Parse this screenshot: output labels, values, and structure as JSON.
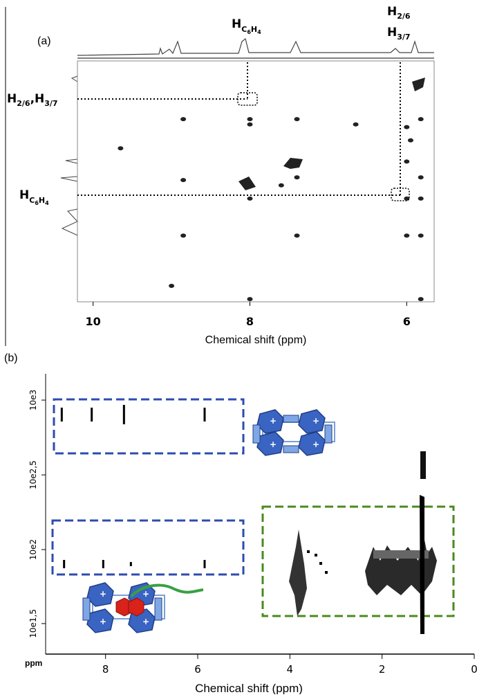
{
  "panel_a": {
    "label": "(a)",
    "top_label_1": "H",
    "top_label_1_sub": "C",
    "top_label_1_sub6": "6",
    "top_label_1_subH": "H",
    "top_label_1_sub4": "4",
    "top_label_2_line1": "H",
    "top_label_2_line1_sub": "2/6",
    "top_label_2_line2": "H",
    "top_label_2_line2_sub": "3/7",
    "left_label_1": "H",
    "left_label_1_sub": "2/6",
    "left_label_1_mid": ",H",
    "left_label_1_sub2": "3/7",
    "left_label_2": "H",
    "left_label_2_sub": "C",
    "left_label_2_sub6": "6",
    "left_label_2_subH": "H",
    "left_label_2_sub4": "4",
    "x_label": "Chemical shift (ppm)"
  },
  "panel_b": {
    "label": "(b)",
    "x_label": "Chemical shift (ppm)",
    "ppm_label": "ppm"
  },
  "chart_data": [
    {
      "type": "scatter",
      "title": "",
      "xlabel": "Chemical shift (ppm)",
      "ylabel": "",
      "x_ticks": [
        "10",
        "8",
        "6"
      ],
      "x_tick_values": [
        10,
        8,
        6
      ],
      "xlim": [
        10.2,
        5.65
      ],
      "ylim": [
        10.2,
        5.65
      ],
      "series": [
        {
          "points": [
            {
              "x": 8.85,
              "y": 9.1
            },
            {
              "x": 8.0,
              "y": 9.1
            },
            {
              "x": 7.4,
              "y": 9.1
            },
            {
              "x": 6.65,
              "y": 9.0
            },
            {
              "x": 6.0,
              "y": 8.95
            },
            {
              "x": 5.82,
              "y": 9.1
            },
            {
              "x": 5.95,
              "y": 8.7
            },
            {
              "x": 8.0,
              "y": 9.0
            },
            {
              "x": 7.4,
              "y": 8.0
            },
            {
              "x": 7.6,
              "y": 7.85
            },
            {
              "x": 8.0,
              "y": 7.6
            },
            {
              "x": 6.0,
              "y": 7.6
            },
            {
              "x": 5.82,
              "y": 7.6
            },
            {
              "x": 6.0,
              "y": 8.3
            },
            {
              "x": 5.82,
              "y": 8.0
            },
            {
              "x": 8.85,
              "y": 6.9
            },
            {
              "x": 7.4,
              "y": 6.9
            },
            {
              "x": 6.0,
              "y": 6.9
            },
            {
              "x": 5.82,
              "y": 6.9
            },
            {
              "x": 5.82,
              "y": 5.7
            },
            {
              "x": 8.0,
              "y": 5.7
            },
            {
              "x": 8.85,
              "y": 7.95
            },
            {
              "x": 9.65,
              "y": 8.55
            },
            {
              "x": 9.0,
              "y": 5.95
            }
          ]
        }
      ],
      "annotations": [
        "H2/6, H3/7",
        "HC6H4"
      ],
      "grid": false,
      "legend": "none"
    },
    {
      "type": "scatter",
      "title": "",
      "xlabel": "Chemical shift (ppm)",
      "ylabel": "",
      "x_ticks": [
        "8",
        "6",
        "4",
        "2",
        "0"
      ],
      "x_tick_values": [
        8,
        6,
        4,
        2,
        0
      ],
      "y_ticks": [
        "10e3",
        "10e2,5",
        "10e2",
        "10e1,5"
      ],
      "y_tick_values": [
        1000,
        316,
        100,
        32
      ],
      "xlim": [
        9.3,
        0
      ],
      "ylog": true,
      "series": [
        {
          "points": [
            {
              "x": 8.95,
              "y": 800
            },
            {
              "x": 8.3,
              "y": 800
            },
            {
              "x": 7.6,
              "y": 800
            },
            {
              "x": 5.85,
              "y": 800
            },
            {
              "x": 8.9,
              "y": 80
            },
            {
              "x": 8.05,
              "y": 80
            },
            {
              "x": 7.45,
              "y": 80
            },
            {
              "x": 5.85,
              "y": 80
            }
          ]
        }
      ],
      "grid": false,
      "legend": "none"
    }
  ]
}
